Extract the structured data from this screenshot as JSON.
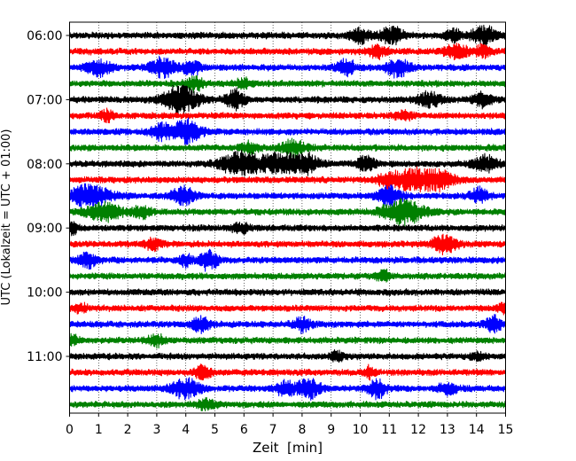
{
  "chart_data": {
    "type": "line",
    "title": "",
    "xlabel": "Zeit  [min]",
    "ylabel": "UTC (Lokalzeit = UTC + 01:00)",
    "xlim": [
      0,
      15
    ],
    "x_ticks": [
      "0",
      "1",
      "2",
      "3",
      "4",
      "5",
      "6",
      "7",
      "8",
      "9",
      "10",
      "11",
      "12",
      "13",
      "14",
      "15"
    ],
    "y_tick_labels": [
      "06:00",
      "07:00",
      "08:00",
      "09:00",
      "10:00",
      "11:00"
    ],
    "grid": "vertical dotted at each minute",
    "trace_colors": [
      "#000000",
      "#ff0000",
      "#0000ff",
      "#008000"
    ],
    "series": [
      {
        "start": "06:00",
        "color": "#000000",
        "bursts": [
          [
            10.0,
            0.35,
            0.8
          ],
          [
            11.1,
            0.4,
            1.0
          ],
          [
            13.2,
            0.3,
            0.7
          ],
          [
            14.3,
            0.5,
            1.0
          ]
        ]
      },
      {
        "start": "06:15",
        "color": "#ff0000",
        "bursts": [
          [
            10.6,
            0.3,
            0.7
          ],
          [
            13.3,
            0.4,
            0.8
          ],
          [
            14.2,
            0.3,
            0.6
          ]
        ]
      },
      {
        "start": "06:30",
        "color": "#0000ff",
        "bursts": [
          [
            1.0,
            0.4,
            0.9
          ],
          [
            3.2,
            0.4,
            1.2
          ],
          [
            4.2,
            0.3,
            0.9
          ],
          [
            9.5,
            0.3,
            1.1
          ],
          [
            11.3,
            0.4,
            1.0
          ]
        ]
      },
      {
        "start": "06:45",
        "color": "#008000",
        "bursts": [
          [
            4.3,
            0.3,
            0.8
          ],
          [
            6.0,
            0.3,
            0.5
          ]
        ]
      },
      {
        "start": "07:00",
        "color": "#000000",
        "bursts": [
          [
            3.8,
            0.6,
            1.6
          ],
          [
            5.7,
            0.3,
            1.2
          ],
          [
            12.4,
            0.4,
            0.8
          ],
          [
            14.2,
            0.3,
            0.8
          ]
        ]
      },
      {
        "start": "07:15",
        "color": "#ff0000",
        "bursts": [
          [
            1.3,
            0.2,
            0.6
          ],
          [
            11.5,
            0.3,
            0.5
          ]
        ]
      },
      {
        "start": "07:30",
        "color": "#0000ff",
        "bursts": [
          [
            3.1,
            0.3,
            1.0
          ],
          [
            4.0,
            0.5,
            1.4
          ]
        ]
      },
      {
        "start": "07:45",
        "color": "#008000",
        "bursts": [
          [
            7.7,
            0.4,
            0.9
          ],
          [
            6.2,
            0.3,
            0.6
          ]
        ]
      },
      {
        "start": "08:00",
        "color": "#000000",
        "bursts": [
          [
            5.9,
            0.7,
            1.4
          ],
          [
            7.3,
            0.6,
            1.2
          ],
          [
            8.2,
            0.4,
            1.0
          ],
          [
            10.2,
            0.3,
            0.9
          ],
          [
            14.3,
            0.4,
            0.9
          ]
        ]
      },
      {
        "start": "08:15",
        "color": "#ff0000",
        "bursts": [
          [
            11.9,
            0.6,
            1.2
          ],
          [
            12.8,
            0.5,
            1.0
          ],
          [
            11.0,
            0.4,
            0.9
          ]
        ]
      },
      {
        "start": "08:30",
        "color": "#0000ff",
        "bursts": [
          [
            0.7,
            0.7,
            1.3
          ],
          [
            3.9,
            0.4,
            1.1
          ],
          [
            11.0,
            0.4,
            1.1
          ],
          [
            14.1,
            0.3,
            0.9
          ]
        ]
      },
      {
        "start": "08:45",
        "color": "#008000",
        "bursts": [
          [
            1.2,
            0.6,
            1.0
          ],
          [
            11.5,
            0.7,
            1.4
          ],
          [
            2.5,
            0.3,
            0.7
          ]
        ]
      },
      {
        "start": "09:00",
        "color": "#000000",
        "bursts": [
          [
            0.1,
            0.2,
            0.6
          ],
          [
            5.9,
            0.3,
            0.5
          ]
        ]
      },
      {
        "start": "09:15",
        "color": "#ff0000",
        "bursts": [
          [
            2.9,
            0.3,
            0.6
          ],
          [
            12.9,
            0.4,
            1.1
          ]
        ]
      },
      {
        "start": "09:30",
        "color": "#0000ff",
        "bursts": [
          [
            0.6,
            0.3,
            0.9
          ],
          [
            4.8,
            0.3,
            1.2
          ],
          [
            4.0,
            0.2,
            0.7
          ]
        ]
      },
      {
        "start": "09:45",
        "color": "#008000",
        "bursts": [
          [
            10.8,
            0.2,
            0.7
          ]
        ]
      },
      {
        "start": "10:00",
        "color": "#000000",
        "bursts": []
      },
      {
        "start": "10:15",
        "color": "#ff0000",
        "bursts": [
          [
            0.4,
            0.2,
            0.5
          ],
          [
            14.9,
            0.2,
            0.5
          ]
        ]
      },
      {
        "start": "10:30",
        "color": "#0000ff",
        "bursts": [
          [
            4.5,
            0.3,
            0.8
          ],
          [
            8.0,
            0.3,
            0.8
          ],
          [
            14.6,
            0.3,
            0.9
          ]
        ]
      },
      {
        "start": "10:45",
        "color": "#008000",
        "bursts": [
          [
            0.1,
            0.2,
            0.6
          ],
          [
            3.0,
            0.3,
            0.6
          ]
        ]
      },
      {
        "start": "11:00",
        "color": "#000000",
        "bursts": [
          [
            9.2,
            0.2,
            0.6
          ],
          [
            14.0,
            0.2,
            0.5
          ]
        ]
      },
      {
        "start": "11:15",
        "color": "#ff0000",
        "bursts": [
          [
            4.6,
            0.3,
            0.7
          ],
          [
            10.3,
            0.2,
            0.6
          ]
        ]
      },
      {
        "start": "11:30",
        "color": "#0000ff",
        "bursts": [
          [
            4.0,
            0.5,
            1.1
          ],
          [
            8.2,
            0.4,
            1.2
          ],
          [
            10.6,
            0.3,
            1.1
          ],
          [
            7.4,
            0.3,
            0.8
          ],
          [
            13.0,
            0.3,
            0.7
          ]
        ]
      },
      {
        "start": "11:45",
        "color": "#008000",
        "bursts": [
          [
            4.7,
            0.3,
            0.6
          ]
        ]
      }
    ]
  }
}
